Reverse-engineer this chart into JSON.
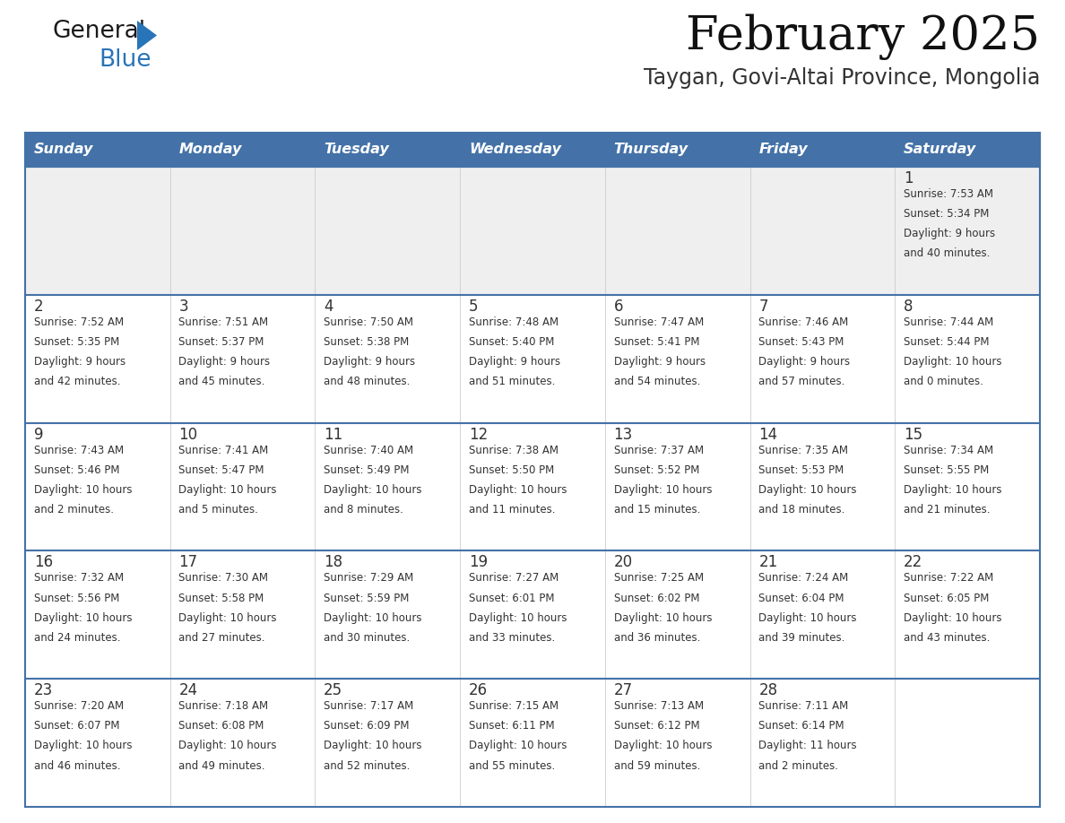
{
  "title": "February 2025",
  "subtitle": "Taygan, Govi-Altai Province, Mongolia",
  "days_of_week": [
    "Sunday",
    "Monday",
    "Tuesday",
    "Wednesday",
    "Thursday",
    "Friday",
    "Saturday"
  ],
  "header_bg": "#4472A8",
  "header_text": "#FFFFFF",
  "cell_bg_light": "#EFEFEF",
  "cell_bg_white": "#FFFFFF",
  "border_color": "#4472A8",
  "day_number_color": "#333333",
  "info_text_color": "#333333",
  "logo_general_color": "#1a1a1a",
  "logo_blue_color": "#2E7EC1",
  "calendar_data": [
    {
      "day": 1,
      "col": 6,
      "row": 0,
      "sunrise": "7:53 AM",
      "sunset": "5:34 PM",
      "daylight_line1": "9 hours",
      "daylight_line2": "and 40 minutes."
    },
    {
      "day": 2,
      "col": 0,
      "row": 1,
      "sunrise": "7:52 AM",
      "sunset": "5:35 PM",
      "daylight_line1": "9 hours",
      "daylight_line2": "and 42 minutes."
    },
    {
      "day": 3,
      "col": 1,
      "row": 1,
      "sunrise": "7:51 AM",
      "sunset": "5:37 PM",
      "daylight_line1": "9 hours",
      "daylight_line2": "and 45 minutes."
    },
    {
      "day": 4,
      "col": 2,
      "row": 1,
      "sunrise": "7:50 AM",
      "sunset": "5:38 PM",
      "daylight_line1": "9 hours",
      "daylight_line2": "and 48 minutes."
    },
    {
      "day": 5,
      "col": 3,
      "row": 1,
      "sunrise": "7:48 AM",
      "sunset": "5:40 PM",
      "daylight_line1": "9 hours",
      "daylight_line2": "and 51 minutes."
    },
    {
      "day": 6,
      "col": 4,
      "row": 1,
      "sunrise": "7:47 AM",
      "sunset": "5:41 PM",
      "daylight_line1": "9 hours",
      "daylight_line2": "and 54 minutes."
    },
    {
      "day": 7,
      "col": 5,
      "row": 1,
      "sunrise": "7:46 AM",
      "sunset": "5:43 PM",
      "daylight_line1": "9 hours",
      "daylight_line2": "and 57 minutes."
    },
    {
      "day": 8,
      "col": 6,
      "row": 1,
      "sunrise": "7:44 AM",
      "sunset": "5:44 PM",
      "daylight_line1": "10 hours",
      "daylight_line2": "and 0 minutes."
    },
    {
      "day": 9,
      "col": 0,
      "row": 2,
      "sunrise": "7:43 AM",
      "sunset": "5:46 PM",
      "daylight_line1": "10 hours",
      "daylight_line2": "and 2 minutes."
    },
    {
      "day": 10,
      "col": 1,
      "row": 2,
      "sunrise": "7:41 AM",
      "sunset": "5:47 PM",
      "daylight_line1": "10 hours",
      "daylight_line2": "and 5 minutes."
    },
    {
      "day": 11,
      "col": 2,
      "row": 2,
      "sunrise": "7:40 AM",
      "sunset": "5:49 PM",
      "daylight_line1": "10 hours",
      "daylight_line2": "and 8 minutes."
    },
    {
      "day": 12,
      "col": 3,
      "row": 2,
      "sunrise": "7:38 AM",
      "sunset": "5:50 PM",
      "daylight_line1": "10 hours",
      "daylight_line2": "and 11 minutes."
    },
    {
      "day": 13,
      "col": 4,
      "row": 2,
      "sunrise": "7:37 AM",
      "sunset": "5:52 PM",
      "daylight_line1": "10 hours",
      "daylight_line2": "and 15 minutes."
    },
    {
      "day": 14,
      "col": 5,
      "row": 2,
      "sunrise": "7:35 AM",
      "sunset": "5:53 PM",
      "daylight_line1": "10 hours",
      "daylight_line2": "and 18 minutes."
    },
    {
      "day": 15,
      "col": 6,
      "row": 2,
      "sunrise": "7:34 AM",
      "sunset": "5:55 PM",
      "daylight_line1": "10 hours",
      "daylight_line2": "and 21 minutes."
    },
    {
      "day": 16,
      "col": 0,
      "row": 3,
      "sunrise": "7:32 AM",
      "sunset": "5:56 PM",
      "daylight_line1": "10 hours",
      "daylight_line2": "and 24 minutes."
    },
    {
      "day": 17,
      "col": 1,
      "row": 3,
      "sunrise": "7:30 AM",
      "sunset": "5:58 PM",
      "daylight_line1": "10 hours",
      "daylight_line2": "and 27 minutes."
    },
    {
      "day": 18,
      "col": 2,
      "row": 3,
      "sunrise": "7:29 AM",
      "sunset": "5:59 PM",
      "daylight_line1": "10 hours",
      "daylight_line2": "and 30 minutes."
    },
    {
      "day": 19,
      "col": 3,
      "row": 3,
      "sunrise": "7:27 AM",
      "sunset": "6:01 PM",
      "daylight_line1": "10 hours",
      "daylight_line2": "and 33 minutes."
    },
    {
      "day": 20,
      "col": 4,
      "row": 3,
      "sunrise": "7:25 AM",
      "sunset": "6:02 PM",
      "daylight_line1": "10 hours",
      "daylight_line2": "and 36 minutes."
    },
    {
      "day": 21,
      "col": 5,
      "row": 3,
      "sunrise": "7:24 AM",
      "sunset": "6:04 PM",
      "daylight_line1": "10 hours",
      "daylight_line2": "and 39 minutes."
    },
    {
      "day": 22,
      "col": 6,
      "row": 3,
      "sunrise": "7:22 AM",
      "sunset": "6:05 PM",
      "daylight_line1": "10 hours",
      "daylight_line2": "and 43 minutes."
    },
    {
      "day": 23,
      "col": 0,
      "row": 4,
      "sunrise": "7:20 AM",
      "sunset": "6:07 PM",
      "daylight_line1": "10 hours",
      "daylight_line2": "and 46 minutes."
    },
    {
      "day": 24,
      "col": 1,
      "row": 4,
      "sunrise": "7:18 AM",
      "sunset": "6:08 PM",
      "daylight_line1": "10 hours",
      "daylight_line2": "and 49 minutes."
    },
    {
      "day": 25,
      "col": 2,
      "row": 4,
      "sunrise": "7:17 AM",
      "sunset": "6:09 PM",
      "daylight_line1": "10 hours",
      "daylight_line2": "and 52 minutes."
    },
    {
      "day": 26,
      "col": 3,
      "row": 4,
      "sunrise": "7:15 AM",
      "sunset": "6:11 PM",
      "daylight_line1": "10 hours",
      "daylight_line2": "and 55 minutes."
    },
    {
      "day": 27,
      "col": 4,
      "row": 4,
      "sunrise": "7:13 AM",
      "sunset": "6:12 PM",
      "daylight_line1": "10 hours",
      "daylight_line2": "and 59 minutes."
    },
    {
      "day": 28,
      "col": 5,
      "row": 4,
      "sunrise": "7:11 AM",
      "sunset": "6:14 PM",
      "daylight_line1": "11 hours",
      "daylight_line2": "and 2 minutes."
    }
  ]
}
